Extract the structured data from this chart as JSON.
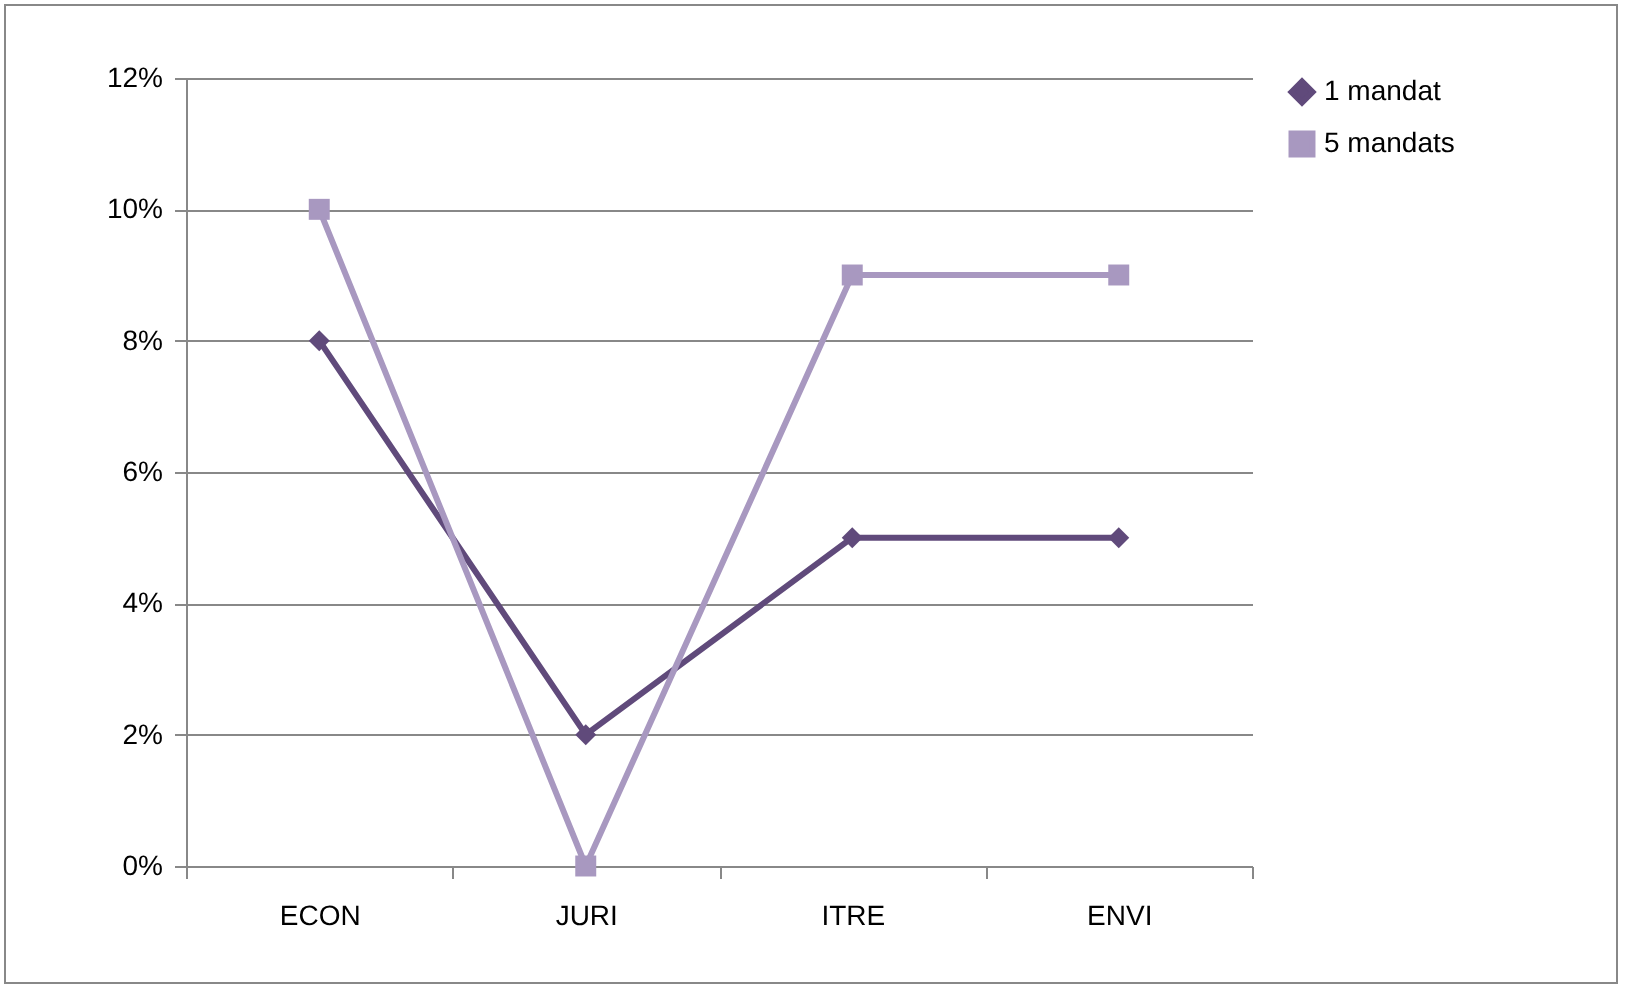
{
  "chart_data": {
    "type": "line",
    "categories": [
      "ECON",
      "JURI",
      "ITRE",
      "ENVI"
    ],
    "series": [
      {
        "name": "1 mandat",
        "color": "#604a7b",
        "marker": "diamond",
        "values": [
          8,
          2,
          5,
          5
        ]
      },
      {
        "name": "5 mandats",
        "color": "#a898c0",
        "marker": "square",
        "values": [
          10,
          0,
          9,
          9
        ]
      }
    ],
    "ylim": [
      0,
      12
    ],
    "yticks": [
      {
        "value": 0,
        "label": "0%"
      },
      {
        "value": 2,
        "label": "2%"
      },
      {
        "value": 4,
        "label": "4%"
      },
      {
        "value": 6,
        "label": "6%"
      },
      {
        "value": 8,
        "label": "8%"
      },
      {
        "value": 10,
        "label": "10%"
      },
      {
        "value": 12,
        "label": "12%"
      }
    ],
    "grid": "y",
    "legend": "right",
    "line_style": "solid"
  }
}
